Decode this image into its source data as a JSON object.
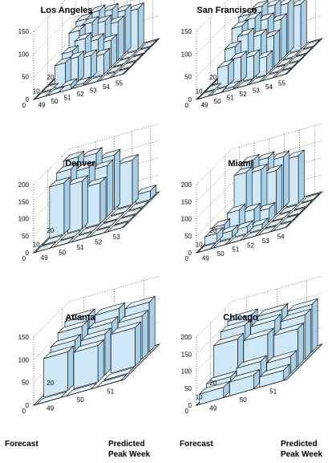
{
  "axis_captions": {
    "forecast": "Forecast",
    "predicted_line1": "Predicted",
    "predicted_line2": "Peak Week"
  },
  "chart_data": [
    {
      "type": "bar3d",
      "title": "Los Angeles",
      "zlim": [
        0,
        150
      ],
      "zticks": [
        0,
        50,
        100,
        150
      ],
      "week_ticks": [
        49,
        50,
        51,
        52,
        53,
        54,
        55
      ],
      "forecast_ticks": [
        0,
        10,
        20
      ],
      "forecast_range": [
        0,
        25
      ],
      "rows": [
        {
          "forecast": 20,
          "values": [
            0,
            100,
            110,
            105,
            95,
            90,
            0
          ]
        },
        {
          "forecast": 15,
          "values": [
            0,
            90,
            100,
            95,
            85,
            0,
            0
          ]
        },
        {
          "forecast": 10,
          "values": [
            0,
            60,
            80,
            70,
            60,
            0,
            0
          ]
        },
        {
          "forecast": 5,
          "values": [
            0,
            50,
            55,
            50,
            45,
            0,
            0
          ]
        },
        {
          "forecast": 0,
          "values": [
            0,
            0,
            10,
            5,
            0,
            0,
            0
          ]
        }
      ]
    },
    {
      "type": "bar3d",
      "title": "San Francisco",
      "zlim": [
        0,
        150
      ],
      "zticks": [
        0,
        50,
        100,
        150
      ],
      "week_ticks": [
        49,
        50,
        51,
        52,
        53,
        54,
        55
      ],
      "forecast_ticks": [
        0,
        10,
        20
      ],
      "forecast_range": [
        0,
        25
      ],
      "rows": [
        {
          "forecast": 20,
          "values": [
            0,
            110,
            120,
            115,
            110,
            100,
            0
          ]
        },
        {
          "forecast": 15,
          "values": [
            0,
            100,
            110,
            100,
            90,
            0,
            0
          ]
        },
        {
          "forecast": 10,
          "values": [
            0,
            70,
            90,
            80,
            70,
            0,
            0
          ]
        },
        {
          "forecast": 5,
          "values": [
            0,
            45,
            55,
            50,
            40,
            0,
            0
          ]
        },
        {
          "forecast": 0,
          "values": [
            0,
            0,
            5,
            0,
            0,
            0,
            0
          ]
        }
      ]
    },
    {
      "type": "bar3d",
      "title": "Denver",
      "zlim": [
        0,
        200
      ],
      "zticks": [
        0,
        50,
        100,
        150,
        200
      ],
      "week_ticks": [
        49,
        50,
        51,
        52,
        53
      ],
      "forecast_ticks": [
        0,
        10,
        20
      ],
      "forecast_range": [
        0,
        25
      ],
      "rows": [
        {
          "forecast": 20,
          "values": [
            185,
            180,
            160,
            130,
            25
          ]
        },
        {
          "forecast": 15,
          "values": [
            170,
            160,
            150,
            0,
            0
          ]
        },
        {
          "forecast": 10,
          "values": [
            150,
            140,
            120,
            0,
            0
          ]
        },
        {
          "forecast": 5,
          "values": [
            0,
            0,
            0,
            0,
            0
          ]
        },
        {
          "forecast": 0,
          "values": [
            0,
            0,
            0,
            0,
            0
          ]
        }
      ]
    },
    {
      "type": "bar3d",
      "title": "Miami",
      "zlim": [
        0,
        200
      ],
      "zticks": [
        0,
        50,
        100,
        150,
        200
      ],
      "week_ticks": [
        49,
        50,
        51,
        52,
        53,
        54
      ],
      "forecast_ticks": [
        0,
        10,
        20
      ],
      "forecast_range": [
        0,
        25
      ],
      "rows": [
        {
          "forecast": 20,
          "values": [
            0,
            165,
            160,
            150,
            140,
            0
          ]
        },
        {
          "forecast": 15,
          "values": [
            0,
            150,
            145,
            130,
            0,
            0
          ]
        },
        {
          "forecast": 10,
          "values": [
            30,
            60,
            50,
            40,
            0,
            0
          ]
        },
        {
          "forecast": 5,
          "values": [
            25,
            20,
            20,
            15,
            0,
            0
          ]
        },
        {
          "forecast": 0,
          "values": [
            0,
            0,
            0,
            0,
            0,
            0
          ]
        }
      ]
    },
    {
      "type": "bar3d",
      "title": "Atlanta",
      "zlim": [
        0,
        150
      ],
      "zticks": [
        0,
        50,
        100,
        150
      ],
      "week_ticks": [
        49,
        50,
        51
      ],
      "forecast_ticks": [
        0,
        20
      ],
      "forecast_range": [
        0,
        25
      ],
      "rows": [
        {
          "forecast": 20,
          "values": [
            120,
            115,
            110,
            0,
            0
          ]
        },
        {
          "forecast": 15,
          "values": [
            110,
            100,
            95,
            10,
            0
          ]
        },
        {
          "forecast": 10,
          "values": [
            95,
            90,
            85,
            0,
            0
          ]
        },
        {
          "forecast": 5,
          "values": [
            85,
            80,
            0,
            0,
            0
          ]
        },
        {
          "forecast": 0,
          "values": [
            0,
            0,
            0,
            0,
            0
          ]
        }
      ]
    },
    {
      "type": "bar3d",
      "title": "Chicago",
      "zlim": [
        0,
        200
      ],
      "zticks": [
        0,
        50,
        100,
        150,
        200
      ],
      "week_ticks": [
        49,
        50,
        51
      ],
      "forecast_ticks": [
        0,
        10,
        20
      ],
      "forecast_range": [
        0,
        25
      ],
      "rows": [
        {
          "forecast": 20,
          "values": [
            160,
            150,
            140,
            0,
            0
          ]
        },
        {
          "forecast": 15,
          "values": [
            150,
            140,
            130,
            0,
            0
          ]
        },
        {
          "forecast": 10,
          "values": [
            130,
            120,
            110,
            0,
            0
          ]
        },
        {
          "forecast": 5,
          "values": [
            40,
            60,
            50,
            40,
            0
          ]
        },
        {
          "forecast": 0,
          "values": [
            30,
            40,
            30,
            20,
            0
          ]
        }
      ]
    }
  ]
}
